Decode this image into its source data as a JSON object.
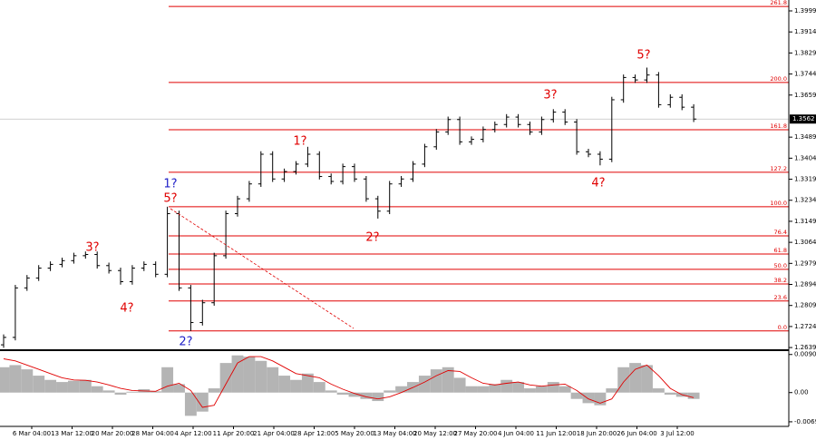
{
  "chart_data": {
    "type": "ohlc",
    "color": "#000000",
    "x_labels": [
      "6 Mar 04:00",
      "13 Mar 12:00",
      "20 Mar 20:00",
      "28 Mar 04:00",
      "4 Apr 12:00",
      "11 Apr 20:00",
      "21 Apr 04:00",
      "28 Apr 12:00",
      "5 May 20:00",
      "13 May 04:00",
      "20 May 12:00",
      "27 May 20:00",
      "4 Jun 04:00",
      "11 Jun 12:00",
      "18 Jun 20:00",
      "26 Jun 04:00",
      "3 Jul 12:00"
    ],
    "open": [
      1.265,
      1.268,
      1.288,
      1.292,
      1.296,
      1.2975,
      1.299,
      1.301,
      1.3015,
      1.297,
      1.295,
      1.2905,
      1.296,
      1.2975,
      1.2935,
      1.318,
      1.288,
      1.274,
      1.282,
      1.301,
      1.318,
      1.324,
      1.33,
      1.342,
      1.332,
      1.335,
      1.338,
      1.342,
      1.333,
      1.331,
      1.337,
      1.332,
      1.324,
      1.319,
      1.33,
      1.332,
      1.338,
      1.345,
      1.351,
      1.356,
      1.347,
      1.348,
      1.352,
      1.354,
      1.357,
      1.354,
      1.351,
      1.356,
      1.359,
      1.355,
      1.343,
      1.342,
      1.34,
      1.364,
      1.373,
      1.372,
      1.374,
      1.362,
      1.365,
      1.361
    ],
    "high": [
      1.2692,
      1.2892,
      1.2932,
      1.2972,
      1.2987,
      1.3002,
      1.3022,
      1.3027,
      1.3027,
      1.2982,
      1.2962,
      1.2972,
      1.2987,
      1.2987,
      1.3208,
      1.3192,
      1.2892,
      1.2832,
      1.3022,
      1.3192,
      1.3252,
      1.3312,
      1.3432,
      1.3432,
      1.3362,
      1.3392,
      1.345,
      1.3432,
      1.3342,
      1.3382,
      1.3382,
      1.3332,
      1.3252,
      1.3312,
      1.3332,
      1.3392,
      1.3462,
      1.3522,
      1.3572,
      1.3572,
      1.3492,
      1.3532,
      1.3552,
      1.3582,
      1.3582,
      1.3552,
      1.3572,
      1.3602,
      1.3602,
      1.3562,
      1.3442,
      1.3432,
      1.3652,
      1.3742,
      1.3742,
      1.377,
      1.3752,
      1.3662,
      1.3662,
      1.3622
    ],
    "low": [
      1.2638,
      1.2668,
      1.2868,
      1.2908,
      1.2948,
      1.2963,
      1.2978,
      1.2998,
      1.2958,
      1.2938,
      1.2893,
      1.2893,
      1.2948,
      1.2923,
      1.2923,
      1.2868,
      1.2706,
      1.2728,
      1.2808,
      1.2998,
      1.3168,
      1.3228,
      1.3288,
      1.3308,
      1.3308,
      1.3338,
      1.3368,
      1.3318,
      1.3298,
      1.3298,
      1.3308,
      1.3228,
      1.316,
      1.3178,
      1.3288,
      1.3308,
      1.3368,
      1.3438,
      1.3498,
      1.3458,
      1.3458,
      1.3468,
      1.3508,
      1.3528,
      1.3528,
      1.3498,
      1.3498,
      1.3548,
      1.3538,
      1.3418,
      1.3408,
      1.3375,
      1.3388,
      1.3628,
      1.3708,
      1.3708,
      1.3608,
      1.3608,
      1.3598,
      1.355
    ],
    "close": [
      1.268,
      1.288,
      1.292,
      1.296,
      1.2975,
      1.299,
      1.301,
      1.3015,
      1.297,
      1.295,
      1.2905,
      1.296,
      1.2975,
      1.2935,
      1.318,
      1.288,
      1.274,
      1.282,
      1.301,
      1.318,
      1.324,
      1.33,
      1.342,
      1.332,
      1.335,
      1.338,
      1.342,
      1.333,
      1.331,
      1.337,
      1.332,
      1.324,
      1.319,
      1.33,
      1.332,
      1.338,
      1.345,
      1.351,
      1.356,
      1.347,
      1.348,
      1.352,
      1.354,
      1.357,
      1.354,
      1.351,
      1.356,
      1.359,
      1.355,
      1.343,
      1.342,
      1.34,
      1.364,
      1.373,
      1.372,
      1.374,
      1.362,
      1.365,
      1.361,
      1.3562
    ],
    "ylim": [
      1.2632,
      1.4043
    ],
    "yticks": [
      1.3999,
      1.3914,
      1.3829,
      1.3744,
      1.3659,
      1.3489,
      1.3404,
      1.3319,
      1.3234,
      1.3149,
      1.3064,
      1.2979,
      1.2894,
      1.2809,
      1.2724,
      1.2639
    ],
    "last_price": 1.3562,
    "fib_color": "#e00000",
    "fib_levels": [
      {
        "label": "261.8",
        "price": 1.4017
      },
      {
        "label": "200.0",
        "price": 1.371
      },
      {
        "label": "161.8",
        "price": 1.3519
      },
      {
        "label": "127.2",
        "price": 1.3347
      },
      {
        "label": "100.0",
        "price": 1.3208
      },
      {
        "label": "76.4",
        "price": 1.309
      },
      {
        "label": "61.8",
        "price": 1.3017
      },
      {
        "label": "50.0",
        "price": 1.2955
      },
      {
        "label": "38.2",
        "price": 1.2896
      },
      {
        "label": "23.6",
        "price": 1.2827
      },
      {
        "label": "0.0",
        "price": 1.2706
      }
    ],
    "waves": [
      {
        "text": "1?",
        "color": "#2020c8"
      },
      {
        "text": "5?",
        "color": "#e00000"
      },
      {
        "text": "2?",
        "color": "#2020c8"
      },
      {
        "text": "3?",
        "color": "#e00000"
      },
      {
        "text": "4?",
        "color": "#e00000"
      },
      {
        "text": "1?",
        "color": "#e00000"
      },
      {
        "text": "2?",
        "color": "#e00000"
      },
      {
        "text": "3?",
        "color": "#e00000"
      },
      {
        "text": "4?",
        "color": "#e00000"
      },
      {
        "text": "5?",
        "color": "#e00000"
      }
    ],
    "indicator": {
      "type": "macd",
      "histogram_color": "#b4b4b4",
      "signal_color": "#e00000",
      "histogram": [
        0.006,
        0.0065,
        0.0055,
        0.004,
        0.003,
        0.0025,
        0.0028,
        0.003,
        0.0015,
        0.0005,
        -0.0005,
        0.0002,
        0.0008,
        0.0003,
        0.006,
        0.002,
        -0.0055,
        -0.0045,
        0.001,
        0.007,
        0.0088,
        0.0085,
        0.0075,
        0.006,
        0.004,
        0.003,
        0.0045,
        0.0025,
        0.0005,
        -0.0005,
        -0.001,
        -0.0015,
        -0.002,
        0.0005,
        0.0015,
        0.0025,
        0.004,
        0.0055,
        0.006,
        0.0035,
        0.0015,
        0.0015,
        0.002,
        0.003,
        0.0025,
        0.001,
        0.0015,
        0.0025,
        0.0015,
        -0.0015,
        -0.0025,
        -0.003,
        0.001,
        0.006,
        0.007,
        0.0065,
        0.001,
        -0.0005,
        -0.001,
        -0.0015
      ],
      "signal": [
        0.008,
        0.0075,
        0.0065,
        0.0055,
        0.0045,
        0.0035,
        0.003,
        0.0029,
        0.0025,
        0.0018,
        0.001,
        0.0005,
        0.0004,
        0.0003,
        0.0015,
        0.0022,
        0.0005,
        -0.0035,
        -0.003,
        0.002,
        0.007,
        0.0085,
        0.0085,
        0.0075,
        0.006,
        0.0045,
        0.004,
        0.0035,
        0.002,
        0.0008,
        -0.0002,
        -0.001,
        -0.0015,
        -0.001,
        0.0,
        0.0012,
        0.0025,
        0.004,
        0.0052,
        0.005,
        0.0035,
        0.0022,
        0.0018,
        0.0022,
        0.0025,
        0.0018,
        0.0015,
        0.0018,
        0.002,
        0.0005,
        -0.0015,
        -0.0025,
        -0.0015,
        0.0025,
        0.0055,
        0.0065,
        0.004,
        0.001,
        -0.0005,
        -0.0012
      ],
      "ylim": [
        -0.008,
        0.0096
      ],
      "yticks": [
        0.00901,
        {
          "value": 0,
          "label": "0.00"
        },
        -0.00691
      ]
    }
  }
}
